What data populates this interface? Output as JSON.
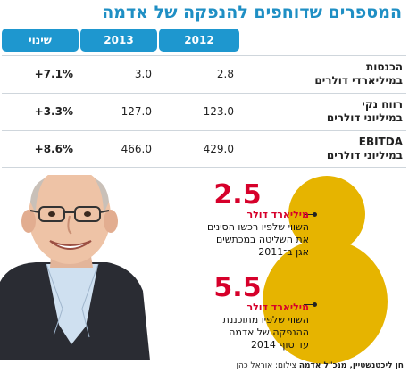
{
  "title": "המספרים שדוחפים להנפקה של אדמה",
  "table": {
    "headers": {
      "y2012": "2012",
      "y2013": "2013",
      "change": "שינוי"
    },
    "rows": [
      {
        "label1": "הכנסות",
        "label2": "במיליארדי דולרים",
        "y2012": "2.8",
        "y2013": "3.0",
        "change": "+7.1%"
      },
      {
        "label1": "רווח נקי",
        "label2": "במיליוני דולרים",
        "y2012": "123.0",
        "y2013": "127.0",
        "change": "+3.3%"
      },
      {
        "label1": "EBITDA",
        "label2": "במיליוני דולרים",
        "y2012": "429.0",
        "y2013": "466.0",
        "change": "+8.6%"
      }
    ]
  },
  "figures": [
    {
      "value": "2.5",
      "unit": "מיליארד דולר",
      "desc1": "השווי שלפיו רכשו הסינים",
      "desc2": "את השליטה במכתשים",
      "desc3": "אגן ב־2011"
    },
    {
      "value": "5.5",
      "unit": "מיליארד דולר",
      "desc1": "השווי שלפיו מתוכננת",
      "desc2": "ההנפקה של אדמה",
      "desc3": "עד סוף 2014"
    }
  ],
  "credit": {
    "name": "חן ליכטנשטיין, מנכ\"ל אדמה",
    "photo": "צילום: אוראל כהן"
  },
  "colors": {
    "accent": "#1e97cf",
    "highlight": "#d6002a",
    "bubble": "#e6b400"
  }
}
